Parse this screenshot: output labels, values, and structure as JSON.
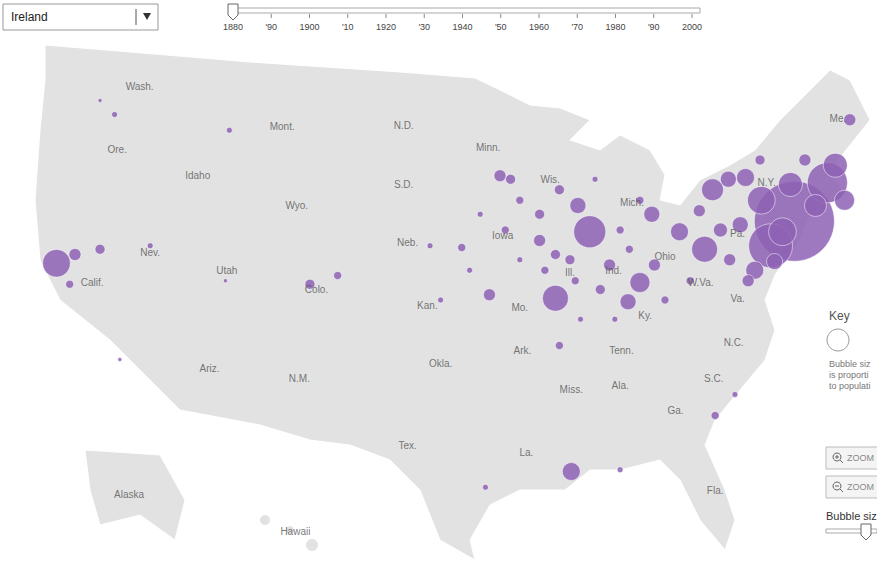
{
  "chart_data": {
    "type": "scatter",
    "marker": "circle",
    "color": "#8e62b4",
    "grid": false,
    "tick_labels": false,
    "xlim": [
      -125,
      -62
    ],
    "ylim": [
      21.5,
      49.5
    ],
    "x": [
      -67.7,
      -69.5,
      -65.2,
      -68.6,
      -70.2,
      -123.6,
      -83.2,
      -74.5,
      -85.8,
      -68.0,
      -64.6,
      -66.1,
      -73.9,
      -63.9,
      -79.4,
      -71.4,
      -70.7,
      -76.4,
      -84.6,
      -72.7,
      -69.2,
      -80.3,
      -78.5,
      -84.1,
      -71.8,
      -63.5,
      -71.2,
      -78.3,
      -90.8,
      -87.0,
      -90.0,
      -81.7,
      -122.2,
      -74.9,
      -72.6,
      -66.9,
      -73.3,
      -70.3,
      -85.8,
      -120.3,
      -104.4,
      -102.3,
      -92.9,
      -85.5,
      -88.5,
      -87.0,
      -84.7,
      -84.3,
      -88.5,
      -82.4,
      -80.9,
      -80.2,
      -85.5,
      -82.8,
      -89.2,
      -79.4,
      -75.6,
      -77.5,
      -81.3,
      -83.9,
      -86.6,
      -92.3,
      -94.5,
      -95.3,
      -89.6,
      -91.5,
      -119.2,
      -120.3,
      -110.5,
      -73.7,
      -72.2,
      -80.9,
      -91.1,
      -122.6,
      -118.8,
      -116.5,
      -110.8
    ],
    "y": [
      40.4,
      39.0,
      42.6,
      39.8,
      41.6,
      38.0,
      39.8,
      38.8,
      36.0,
      42.5,
      43.6,
      41.3,
      42.2,
      41.6,
      36.9,
      42.9,
      37.6,
      39.8,
      26.1,
      42.8,
      38.1,
      35.8,
      40.8,
      41.3,
      40.2,
      46.2,
      37.0,
      37.9,
      36.2,
      39.3,
      43.0,
      37.9,
      38.5,
      41.0,
      38.2,
      43.9,
      39.9,
      43.9,
      38.5,
      38.8,
      36.8,
      37.3,
      38.9,
      33.3,
      41.6,
      40.8,
      38.2,
      37.0,
      38.2,
      36.5,
      39.9,
      38.8,
      42.2,
      42.8,
      42.8,
      41.6,
      37.0,
      35.9,
      34.8,
      34.8,
      37.6,
      37.6,
      35.9,
      39.0,
      39.9,
      40.8,
      46.5,
      47.3,
      45.6,
      29.3,
      30.5,
      26.2,
      25.2,
      36.8,
      32.5,
      39.0,
      37.0
    ],
    "size": [
      200000,
      60000,
      50000,
      24000,
      24000,
      24000,
      32000,
      21000,
      21000,
      18000,
      18000,
      15000,
      15000,
      12500,
      12500,
      10000,
      10000,
      10000,
      10000,
      8000,
      8000,
      8000,
      8000,
      8000,
      8000,
      4500,
      4500,
      4500,
      4500,
      4500,
      4500,
      4500,
      4500,
      4500,
      4500,
      4500,
      6100,
      3100,
      3100,
      3100,
      3100,
      2000,
      2000,
      2000,
      2000,
      3100,
      3100,
      2000,
      1100,
      3100,
      2000,
      2000,
      3100,
      1100,
      3100,
      2000,
      2000,
      2000,
      1100,
      1100,
      2000,
      1100,
      1100,
      1100,
      2000,
      1100,
      1100,
      500,
      1100,
      2000,
      1100,
      1100,
      1100,
      2000,
      500,
      1100,
      500
    ],
    "annotations": [
      {
        "text": "Wash.",
        "x": -117.3,
        "y": 48.1
      },
      {
        "text": "Ore.",
        "x": -119.0,
        "y": 44.5
      },
      {
        "text": "Idaho",
        "x": -112.9,
        "y": 43.0
      },
      {
        "text": "Mont.",
        "x": -106.5,
        "y": 45.8
      },
      {
        "text": "Wyo.",
        "x": -105.4,
        "y": 41.3
      },
      {
        "text": "N.D.",
        "x": -97.3,
        "y": 45.9
      },
      {
        "text": "S.D.",
        "x": -97.3,
        "y": 42.5
      },
      {
        "text": "Minn.",
        "x": -90.9,
        "y": 44.6
      },
      {
        "text": "Wis.",
        "x": -86.2,
        "y": 42.8
      },
      {
        "text": "Mich.",
        "x": -80.0,
        "y": 41.5
      },
      {
        "text": "Iowa",
        "x": -89.8,
        "y": 39.6
      },
      {
        "text": "Neb.",
        "x": -97.0,
        "y": 39.2
      },
      {
        "text": "Nev.",
        "x": -116.5,
        "y": 38.6
      },
      {
        "text": "Calif.",
        "x": -120.9,
        "y": 36.9
      },
      {
        "text": "Utah",
        "x": -110.7,
        "y": 37.6
      },
      {
        "text": "Colo.",
        "x": -103.9,
        "y": 36.5
      },
      {
        "text": "Kan.",
        "x": -95.5,
        "y": 35.6
      },
      {
        "text": "Mo.",
        "x": -88.5,
        "y": 35.5
      },
      {
        "text": "Ill.",
        "x": -84.7,
        "y": 37.5
      },
      {
        "text": "Ind.",
        "x": -81.4,
        "y": 37.6
      },
      {
        "text": "Ohio",
        "x": -77.5,
        "y": 38.4
      },
      {
        "text": "Pa.",
        "x": -72.0,
        "y": 39.7
      },
      {
        "text": "N.Y.",
        "x": -69.8,
        "y": 42.6
      },
      {
        "text": "Me.",
        "x": -64.4,
        "y": 46.3
      },
      {
        "text": "W.Va.",
        "x": -74.8,
        "y": 36.9
      },
      {
        "text": "Va.",
        "x": -72.0,
        "y": 36.0
      },
      {
        "text": "Ky.",
        "x": -79.0,
        "y": 35.0
      },
      {
        "text": "Tenn.",
        "x": -80.8,
        "y": 33.0
      },
      {
        "text": "N.C.",
        "x": -72.3,
        "y": 33.5
      },
      {
        "text": "S.C.",
        "x": -73.8,
        "y": 31.4
      },
      {
        "text": "Ga.",
        "x": -76.7,
        "y": 29.6
      },
      {
        "text": "Ala.",
        "x": -80.9,
        "y": 31.0
      },
      {
        "text": "Miss.",
        "x": -84.6,
        "y": 30.8
      },
      {
        "text": "Ark.",
        "x": -88.3,
        "y": 33.0
      },
      {
        "text": "La.",
        "x": -88.0,
        "y": 27.2
      },
      {
        "text": "Tex.",
        "x": -97.0,
        "y": 27.6
      },
      {
        "text": "Okla.",
        "x": -94.5,
        "y": 32.3
      },
      {
        "text": "Ariz.",
        "x": -112.0,
        "y": 32.0
      },
      {
        "text": "N.M.",
        "x": -105.2,
        "y": 31.4
      },
      {
        "text": "Fla.",
        "x": -73.7,
        "y": 25.0
      },
      {
        "text": "Alaska",
        "x": -118.1,
        "y": 24.8
      },
      {
        "text": "Hawaii",
        "x": -105.5,
        "y": 22.7
      }
    ]
  },
  "controls": {
    "country": "Ireland",
    "timeline": [
      "1880",
      "'90",
      "1900",
      "'10",
      "1920",
      "'30",
      "1940",
      "'50",
      "1960",
      "'70",
      "1980",
      "'90",
      "2000"
    ],
    "key": {
      "title": "Key",
      "lines": [
        "Bubble siz",
        "is proporti",
        "to populati"
      ]
    },
    "zoom": [
      "ZOOM",
      "ZOOM"
    ],
    "bubble_size": "Bubble siz"
  }
}
